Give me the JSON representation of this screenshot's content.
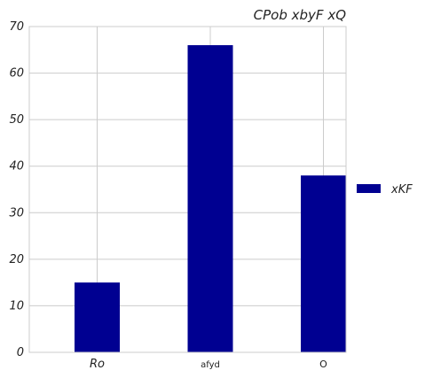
{
  "chart_data": {
    "type": "bar",
    "title": "CPob  xbyF  xQ",
    "categories": [
      "Ro",
      "afyd",
      "O"
    ],
    "series": [
      {
        "name": "xKF",
        "values": [
          15,
          66,
          38
        ],
        "color": "#000091"
      }
    ],
    "ylim": [
      0,
      70
    ],
    "yticks": [
      "0",
      "10",
      "20",
      "30",
      "40",
      "50",
      "60",
      "70"
    ],
    "grid": true,
    "legend": "right"
  }
}
